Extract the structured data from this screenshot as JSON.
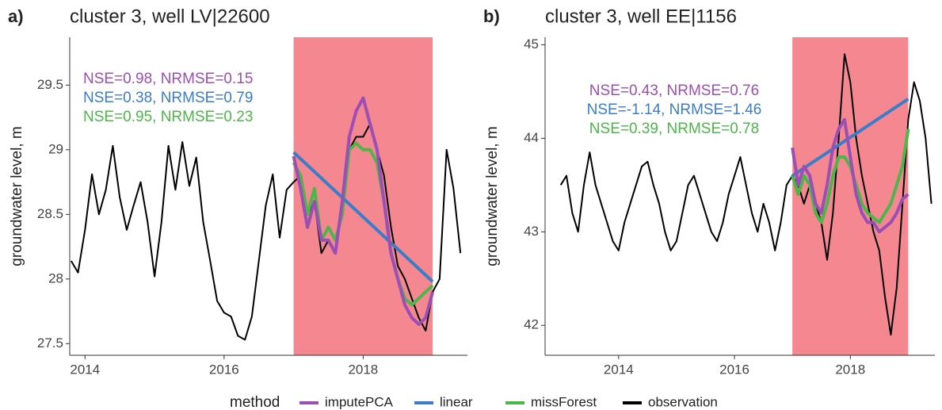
{
  "chart_data": [
    {
      "type": "line",
      "panel_label": "a)",
      "title": "cluster 3, well LV|22600",
      "y_label": "groundwater level, m",
      "xlim": [
        2013.78,
        2019.5
      ],
      "ylim": [
        27.41,
        29.87
      ],
      "xticks": [
        2014,
        2016,
        2018
      ],
      "yticks": [
        27.5,
        28.0,
        28.5,
        29.0,
        29.5
      ],
      "highlight_x": [
        2017,
        2019
      ],
      "highlight_color": "#f4878f",
      "annotations": [
        {
          "text": "NSE=0.98, NRMSE=0.15",
          "color": "#9b4fb5"
        },
        {
          "text": "NSE=0.38, NRMSE=0.79",
          "color": "#3a7dc9"
        },
        {
          "text": "NSE=0.95, NRMSE=0.23",
          "color": "#4cb648"
        }
      ],
      "series": [
        {
          "name": "imputePCA",
          "color": "#9b4fb5",
          "x": [
            2017.0,
            2017.1,
            2017.2,
            2017.3,
            2017.4,
            2017.5,
            2017.6,
            2017.7,
            2017.8,
            2017.9,
            2018.0,
            2018.1,
            2018.2,
            2018.3,
            2018.4,
            2018.5,
            2018.6,
            2018.7,
            2018.8,
            2018.9,
            2019.0
          ],
          "values": [
            28.95,
            28.7,
            28.4,
            28.6,
            28.3,
            28.3,
            28.2,
            28.6,
            29.1,
            29.3,
            29.4,
            29.2,
            29.0,
            28.6,
            28.2,
            28.0,
            27.8,
            27.7,
            27.65,
            27.7,
            27.9
          ]
        },
        {
          "name": "linear",
          "color": "#3a7dc9",
          "x": [
            2017.0,
            2019.0
          ],
          "values": [
            28.98,
            27.98
          ]
        },
        {
          "name": "missForest",
          "color": "#4cb648",
          "x": [
            2017.0,
            2017.1,
            2017.2,
            2017.3,
            2017.4,
            2017.5,
            2017.6,
            2017.7,
            2017.8,
            2017.9,
            2018.0,
            2018.1,
            2018.2,
            2018.3,
            2018.4,
            2018.5,
            2018.6,
            2018.7,
            2018.8,
            2018.9,
            2019.0
          ],
          "values": [
            28.9,
            28.8,
            28.5,
            28.7,
            28.3,
            28.4,
            28.3,
            28.5,
            29.0,
            29.05,
            29.0,
            29.0,
            28.9,
            28.6,
            28.2,
            28.0,
            27.85,
            27.8,
            27.85,
            27.9,
            27.95
          ]
        },
        {
          "name": "observation",
          "color": "#000000",
          "x": [
            2013.8,
            2013.9,
            2014.0,
            2014.1,
            2014.2,
            2014.3,
            2014.4,
            2014.5,
            2014.6,
            2014.7,
            2014.8,
            2014.9,
            2015.0,
            2015.1,
            2015.2,
            2015.3,
            2015.4,
            2015.5,
            2015.6,
            2015.7,
            2015.8,
            2015.9,
            2016.0,
            2016.1,
            2016.2,
            2016.3,
            2016.4,
            2016.5,
            2016.6,
            2016.7,
            2016.8,
            2016.9,
            2017.0,
            2017.1,
            2017.2,
            2017.3,
            2017.4,
            2017.5,
            2017.6,
            2017.7,
            2017.8,
            2017.9,
            2018.0,
            2018.1,
            2018.2,
            2018.3,
            2018.4,
            2018.5,
            2018.6,
            2018.7,
            2018.8,
            2018.9,
            2019.0,
            2019.1,
            2019.2,
            2019.3,
            2019.4
          ],
          "values": [
            28.14,
            28.05,
            28.38,
            28.81,
            28.5,
            28.69,
            29.03,
            28.63,
            28.38,
            28.57,
            28.75,
            28.44,
            28.02,
            28.44,
            29.03,
            28.69,
            29.06,
            28.72,
            28.94,
            28.44,
            28.14,
            27.83,
            27.74,
            27.71,
            27.56,
            27.53,
            27.71,
            28.14,
            28.57,
            28.81,
            28.32,
            28.69,
            28.75,
            28.8,
            28.5,
            28.6,
            28.2,
            28.3,
            28.2,
            28.6,
            29.0,
            29.1,
            29.1,
            29.2,
            29.0,
            28.8,
            28.4,
            28.1,
            28.0,
            27.85,
            27.7,
            27.6,
            27.9,
            28.0,
            29.0,
            28.7,
            28.2
          ]
        }
      ]
    },
    {
      "type": "line",
      "panel_label": "b)",
      "title": "cluster 3, well EE|1156",
      "y_label": "groundwater level, m",
      "xlim": [
        2012.73,
        2019.46
      ],
      "ylim": [
        41.68,
        45.08
      ],
      "xticks": [
        2014,
        2016,
        2018
      ],
      "yticks": [
        42,
        43,
        44,
        45
      ],
      "highlight_x": [
        2017,
        2019
      ],
      "highlight_color": "#f4878f",
      "annotations": [
        {
          "text": "NSE=0.43, NRMSE=0.76",
          "color": "#9b4fb5"
        },
        {
          "text": "NSE=-1.14, NRMSE=1.46",
          "color": "#3a7dc9"
        },
        {
          "text": "NSE=0.39, NRMSE=0.78",
          "color": "#4cb648"
        }
      ],
      "series": [
        {
          "name": "imputePCA",
          "color": "#9b4fb5",
          "x": [
            2017.0,
            2017.1,
            2017.2,
            2017.3,
            2017.4,
            2017.5,
            2017.6,
            2017.7,
            2017.8,
            2017.9,
            2018.0,
            2018.1,
            2018.2,
            2018.3,
            2018.4,
            2018.5,
            2018.6,
            2018.7,
            2018.8,
            2018.9,
            2019.0
          ],
          "values": [
            43.9,
            43.5,
            43.7,
            43.6,
            43.3,
            43.2,
            43.5,
            43.9,
            44.1,
            44.2,
            43.8,
            43.4,
            43.2,
            43.1,
            43.1,
            43.0,
            43.05,
            43.1,
            43.2,
            43.35,
            43.4
          ]
        },
        {
          "name": "linear",
          "color": "#3a7dc9",
          "x": [
            2017.0,
            2019.0
          ],
          "values": [
            43.6,
            44.42
          ]
        },
        {
          "name": "missForest",
          "color": "#4cb648",
          "x": [
            2017.0,
            2017.1,
            2017.2,
            2017.3,
            2017.4,
            2017.5,
            2017.6,
            2017.7,
            2017.8,
            2017.9,
            2018.0,
            2018.1,
            2018.2,
            2018.3,
            2018.4,
            2018.5,
            2018.6,
            2018.7,
            2018.8,
            2018.9,
            2019.0
          ],
          "values": [
            43.6,
            43.4,
            43.6,
            43.5,
            43.2,
            43.1,
            43.3,
            43.6,
            43.8,
            43.8,
            43.7,
            43.5,
            43.3,
            43.2,
            43.15,
            43.1,
            43.2,
            43.3,
            43.5,
            43.7,
            44.1
          ]
        },
        {
          "name": "observation",
          "color": "#000000",
          "x": [
            2013.0,
            2013.1,
            2013.2,
            2013.3,
            2013.4,
            2013.5,
            2013.6,
            2013.7,
            2013.8,
            2013.9,
            2014.0,
            2014.1,
            2014.2,
            2014.3,
            2014.4,
            2014.5,
            2014.6,
            2014.7,
            2014.8,
            2014.9,
            2015.0,
            2015.1,
            2015.2,
            2015.3,
            2015.4,
            2015.5,
            2015.6,
            2015.7,
            2015.8,
            2015.9,
            2016.0,
            2016.1,
            2016.2,
            2016.3,
            2016.4,
            2016.5,
            2016.6,
            2016.7,
            2016.8,
            2016.9,
            2017.0,
            2017.1,
            2017.2,
            2017.3,
            2017.4,
            2017.5,
            2017.6,
            2017.7,
            2017.8,
            2017.9,
            2018.0,
            2018.1,
            2018.2,
            2018.3,
            2018.4,
            2018.5,
            2018.6,
            2018.7,
            2018.8,
            2018.9,
            2019.0,
            2019.1,
            2019.2,
            2019.3,
            2019.4
          ],
          "values": [
            43.5,
            43.6,
            43.2,
            43.0,
            43.5,
            43.85,
            43.5,
            43.3,
            43.1,
            42.9,
            42.8,
            43.1,
            43.3,
            43.5,
            43.7,
            43.75,
            43.5,
            43.3,
            43.0,
            42.8,
            42.9,
            43.2,
            43.5,
            43.6,
            43.4,
            43.2,
            43.0,
            42.9,
            43.1,
            43.4,
            43.6,
            43.8,
            43.5,
            43.2,
            43.0,
            43.3,
            43.1,
            42.8,
            43.1,
            43.5,
            43.6,
            43.5,
            43.3,
            43.5,
            43.3,
            43.1,
            42.7,
            43.2,
            44.0,
            44.9,
            44.6,
            44.0,
            43.6,
            43.3,
            43.0,
            42.8,
            42.3,
            41.9,
            42.4,
            43.3,
            44.2,
            44.6,
            44.4,
            44.0,
            43.3
          ]
        }
      ]
    }
  ],
  "legend_title": "method"
}
